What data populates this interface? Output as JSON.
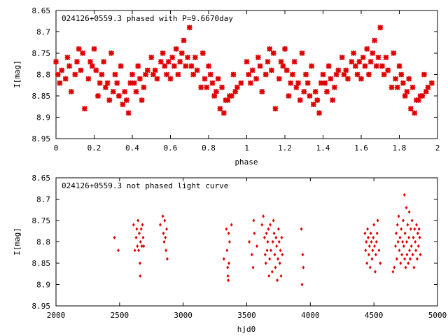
{
  "chart_data": [
    {
      "type": "scatter",
      "title": "024126+0559.3 phased with P=9.6670day",
      "xlabel": "phase",
      "ylabel": "I[mag]",
      "xlim": [
        0,
        2
      ],
      "ylim": [
        8.95,
        8.65
      ],
      "y_inverted": true,
      "xticks": [
        "0",
        "0.2",
        "0.4",
        "0.6",
        "0.8",
        "1",
        "1.2",
        "1.4",
        "1.6",
        "1.8",
        "2"
      ],
      "yticks": [
        "8.65",
        "8.7",
        "8.75",
        "8.8",
        "8.85",
        "8.9",
        "8.95"
      ],
      "color": "#e00000",
      "marker": "star",
      "phase_points_one_cycle": [
        [
          0.0,
          8.77
        ],
        [
          0.01,
          8.8
        ],
        [
          0.02,
          8.82
        ],
        [
          0.03,
          8.79
        ],
        [
          0.05,
          8.81
        ],
        [
          0.06,
          8.76
        ],
        [
          0.07,
          8.78
        ],
        [
          0.08,
          8.84
        ],
        [
          0.1,
          8.8
        ],
        [
          0.11,
          8.77
        ],
        [
          0.12,
          8.74
        ],
        [
          0.13,
          8.79
        ],
        [
          0.14,
          8.75
        ],
        [
          0.15,
          8.88
        ],
        [
          0.17,
          8.81
        ],
        [
          0.18,
          8.77
        ],
        [
          0.19,
          8.78
        ],
        [
          0.2,
          8.74
        ],
        [
          0.21,
          8.79
        ],
        [
          0.22,
          8.85
        ],
        [
          0.23,
          8.82
        ],
        [
          0.24,
          8.8
        ],
        [
          0.25,
          8.77
        ],
        [
          0.26,
          8.83
        ],
        [
          0.27,
          8.82
        ],
        [
          0.28,
          8.86
        ],
        [
          0.29,
          8.75
        ],
        [
          0.3,
          8.84
        ],
        [
          0.31,
          8.8
        ],
        [
          0.32,
          8.82
        ],
        [
          0.33,
          8.85
        ],
        [
          0.34,
          8.78
        ],
        [
          0.35,
          8.87
        ],
        [
          0.36,
          8.84
        ],
        [
          0.37,
          8.86
        ],
        [
          0.38,
          8.89
        ],
        [
          0.39,
          8.82
        ],
        [
          0.4,
          8.8
        ],
        [
          0.41,
          8.82
        ],
        [
          0.42,
          8.84
        ],
        [
          0.43,
          8.78
        ],
        [
          0.44,
          8.81
        ],
        [
          0.45,
          8.86
        ],
        [
          0.46,
          8.83
        ],
        [
          0.47,
          8.8
        ],
        [
          0.48,
          8.79
        ],
        [
          0.5,
          8.76
        ],
        [
          0.51,
          8.8
        ],
        [
          0.52,
          8.79
        ],
        [
          0.53,
          8.81
        ],
        [
          0.55,
          8.77
        ],
        [
          0.56,
          8.75
        ],
        [
          0.57,
          8.78
        ],
        [
          0.58,
          8.8
        ],
        [
          0.59,
          8.77
        ],
        [
          0.6,
          8.81
        ],
        [
          0.61,
          8.76
        ],
        [
          0.62,
          8.78
        ],
        [
          0.63,
          8.74
        ],
        [
          0.64,
          8.8
        ],
        [
          0.65,
          8.77
        ],
        [
          0.66,
          8.75
        ],
        [
          0.67,
          8.72
        ],
        [
          0.68,
          8.78
        ],
        [
          0.69,
          8.76
        ],
        [
          0.7,
          8.69
        ],
        [
          0.71,
          8.78
        ],
        [
          0.72,
          8.8
        ],
        [
          0.73,
          8.76
        ],
        [
          0.74,
          8.79
        ],
        [
          0.76,
          8.83
        ],
        [
          0.77,
          8.75
        ],
        [
          0.78,
          8.81
        ],
        [
          0.79,
          8.83
        ],
        [
          0.8,
          8.78
        ],
        [
          0.81,
          8.8
        ],
        [
          0.82,
          8.82
        ],
        [
          0.83,
          8.85
        ],
        [
          0.84,
          8.84
        ],
        [
          0.85,
          8.81
        ],
        [
          0.86,
          8.88
        ],
        [
          0.87,
          8.83
        ],
        [
          0.88,
          8.89
        ],
        [
          0.89,
          8.86
        ],
        [
          0.9,
          8.86
        ],
        [
          0.91,
          8.85
        ],
        [
          0.92,
          8.85
        ],
        [
          0.93,
          8.8
        ],
        [
          0.94,
          8.84
        ],
        [
          0.95,
          8.83
        ],
        [
          0.97,
          8.82
        ]
      ]
    },
    {
      "type": "scatter",
      "title": "024126+0559.3 not phased light curve",
      "xlabel": "hjd0",
      "ylabel": "I[mag]",
      "xlim": [
        2000,
        5000
      ],
      "ylim": [
        8.95,
        8.65
      ],
      "y_inverted": true,
      "xticks": [
        "2000",
        "2500",
        "3000",
        "3500",
        "4000",
        "4500",
        "5000"
      ],
      "yticks": [
        "8.65",
        "8.7",
        "8.75",
        "8.8",
        "8.85",
        "8.9",
        "8.95"
      ],
      "color": "#e00000",
      "marker": "diamond",
      "points": [
        [
          2460,
          8.79
        ],
        [
          2490,
          8.82
        ],
        [
          2610,
          8.76
        ],
        [
          2620,
          8.82
        ],
        [
          2630,
          8.79
        ],
        [
          2635,
          8.77
        ],
        [
          2640,
          8.81
        ],
        [
          2645,
          8.75
        ],
        [
          2650,
          8.82
        ],
        [
          2655,
          8.78
        ],
        [
          2660,
          8.85
        ],
        [
          2662,
          8.88
        ],
        [
          2665,
          8.8
        ],
        [
          2670,
          8.77
        ],
        [
          2675,
          8.81
        ],
        [
          2680,
          8.76
        ],
        [
          2685,
          8.79
        ],
        [
          2690,
          8.81
        ],
        [
          2820,
          8.76
        ],
        [
          2840,
          8.74
        ],
        [
          2845,
          8.78
        ],
        [
          2850,
          8.8
        ],
        [
          2855,
          8.75
        ],
        [
          2860,
          8.79
        ],
        [
          2865,
          8.82
        ],
        [
          2870,
          8.77
        ],
        [
          2875,
          8.84
        ],
        [
          3320,
          8.84
        ],
        [
          3340,
          8.77
        ],
        [
          3345,
          8.82
        ],
        [
          3350,
          8.86
        ],
        [
          3352,
          8.88
        ],
        [
          3355,
          8.89
        ],
        [
          3358,
          8.78
        ],
        [
          3360,
          8.85
        ],
        [
          3365,
          8.8
        ],
        [
          3380,
          8.76
        ],
        [
          3520,
          8.8
        ],
        [
          3540,
          8.83
        ],
        [
          3550,
          8.86
        ],
        [
          3555,
          8.75
        ],
        [
          3560,
          8.78
        ],
        [
          3580,
          8.81
        ],
        [
          3620,
          8.76
        ],
        [
          3630,
          8.74
        ],
        [
          3640,
          8.79
        ],
        [
          3645,
          8.83
        ],
        [
          3650,
          8.85
        ],
        [
          3655,
          8.78
        ],
        [
          3660,
          8.82
        ],
        [
          3665,
          8.8
        ],
        [
          3670,
          8.77
        ],
        [
          3675,
          8.88
        ],
        [
          3680,
          8.84
        ],
        [
          3685,
          8.76
        ],
        [
          3690,
          8.82
        ],
        [
          3700,
          8.87
        ],
        [
          3705,
          8.8
        ],
        [
          3710,
          8.75
        ],
        [
          3715,
          8.78
        ],
        [
          3720,
          8.83
        ],
        [
          3725,
          8.86
        ],
        [
          3730,
          8.79
        ],
        [
          3735,
          8.81
        ],
        [
          3740,
          8.89
        ],
        [
          3745,
          8.84
        ],
        [
          3750,
          8.77
        ],
        [
          3755,
          8.8
        ],
        [
          3760,
          8.85
        ],
        [
          3765,
          8.82
        ],
        [
          3770,
          8.88
        ],
        [
          3775,
          8.79
        ],
        [
          3780,
          8.83
        ],
        [
          3930,
          8.77
        ],
        [
          3935,
          8.9
        ],
        [
          3940,
          8.83
        ],
        [
          3945,
          8.86
        ],
        [
          4430,
          8.78
        ],
        [
          4435,
          8.82
        ],
        [
          4440,
          8.8
        ],
        [
          4445,
          8.85
        ],
        [
          4450,
          8.77
        ],
        [
          4455,
          8.79
        ],
        [
          4460,
          8.83
        ],
        [
          4465,
          8.81
        ],
        [
          4470,
          8.86
        ],
        [
          4475,
          8.78
        ],
        [
          4480,
          8.8
        ],
        [
          4485,
          8.84
        ],
        [
          4490,
          8.82
        ],
        [
          4495,
          8.79
        ],
        [
          4500,
          8.76
        ],
        [
          4505,
          8.81
        ],
        [
          4510,
          8.87
        ],
        [
          4515,
          8.83
        ],
        [
          4520,
          8.8
        ],
        [
          4525,
          8.78
        ],
        [
          4530,
          8.75
        ],
        [
          4540,
          8.82
        ],
        [
          4550,
          8.85
        ],
        [
          4650,
          8.87
        ],
        [
          4660,
          8.86
        ],
        [
          4670,
          8.81
        ],
        [
          4675,
          8.78
        ],
        [
          4680,
          8.84
        ],
        [
          4685,
          8.76
        ],
        [
          4690,
          8.8
        ],
        [
          4695,
          8.74
        ],
        [
          4700,
          8.82
        ],
        [
          4705,
          8.79
        ],
        [
          4710,
          8.85
        ],
        [
          4715,
          8.77
        ],
        [
          4720,
          8.83
        ],
        [
          4725,
          8.8
        ],
        [
          4730,
          8.75
        ],
        [
          4735,
          8.81
        ],
        [
          4740,
          8.69
        ],
        [
          4742,
          8.84
        ],
        [
          4745,
          8.78
        ],
        [
          4750,
          8.86
        ],
        [
          4755,
          8.72
        ],
        [
          4758,
          8.8
        ],
        [
          4760,
          8.83
        ],
        [
          4765,
          8.76
        ],
        [
          4770,
          8.85
        ],
        [
          4775,
          8.79
        ],
        [
          4778,
          8.73
        ],
        [
          4780,
          8.82
        ],
        [
          4785,
          8.84
        ],
        [
          4790,
          8.77
        ],
        [
          4795,
          8.81
        ],
        [
          4800,
          8.75
        ],
        [
          4805,
          8.83
        ],
        [
          4810,
          8.79
        ],
        [
          4815,
          8.86
        ],
        [
          4820,
          8.77
        ],
        [
          4825,
          8.8
        ],
        [
          4830,
          8.82
        ],
        [
          4835,
          8.76
        ],
        [
          4840,
          8.84
        ],
        [
          4845,
          8.78
        ],
        [
          4850,
          8.81
        ],
        [
          4855,
          8.77
        ],
        [
          4860,
          8.79
        ],
        [
          4865,
          8.83
        ]
      ]
    }
  ]
}
